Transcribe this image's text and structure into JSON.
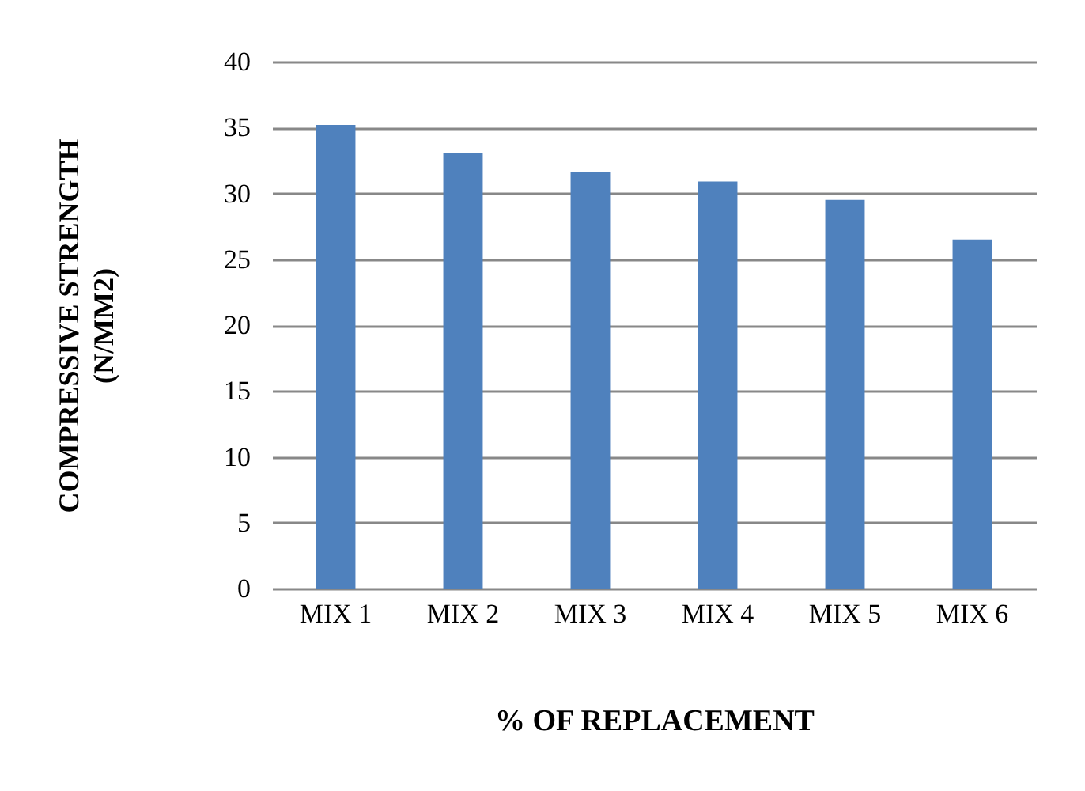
{
  "chart_data": {
    "type": "bar",
    "xlabel": "% OF REPLACEMENT",
    "ylabel": "COMPRESSIVE STRENGTH (N/MM2)",
    "categories": [
      "MIX 1",
      "MIX 2",
      "MIX 3",
      "MIX 4",
      "MIX 5",
      "MIX 6"
    ],
    "values": [
      35.2,
      33.1,
      31.6,
      30.9,
      29.5,
      26.5
    ],
    "color": "#4f81bd",
    "ylim": [
      0,
      40
    ],
    "yticks": [
      0,
      5,
      10,
      15,
      20,
      25,
      30,
      35,
      40
    ],
    "grid": "y"
  }
}
